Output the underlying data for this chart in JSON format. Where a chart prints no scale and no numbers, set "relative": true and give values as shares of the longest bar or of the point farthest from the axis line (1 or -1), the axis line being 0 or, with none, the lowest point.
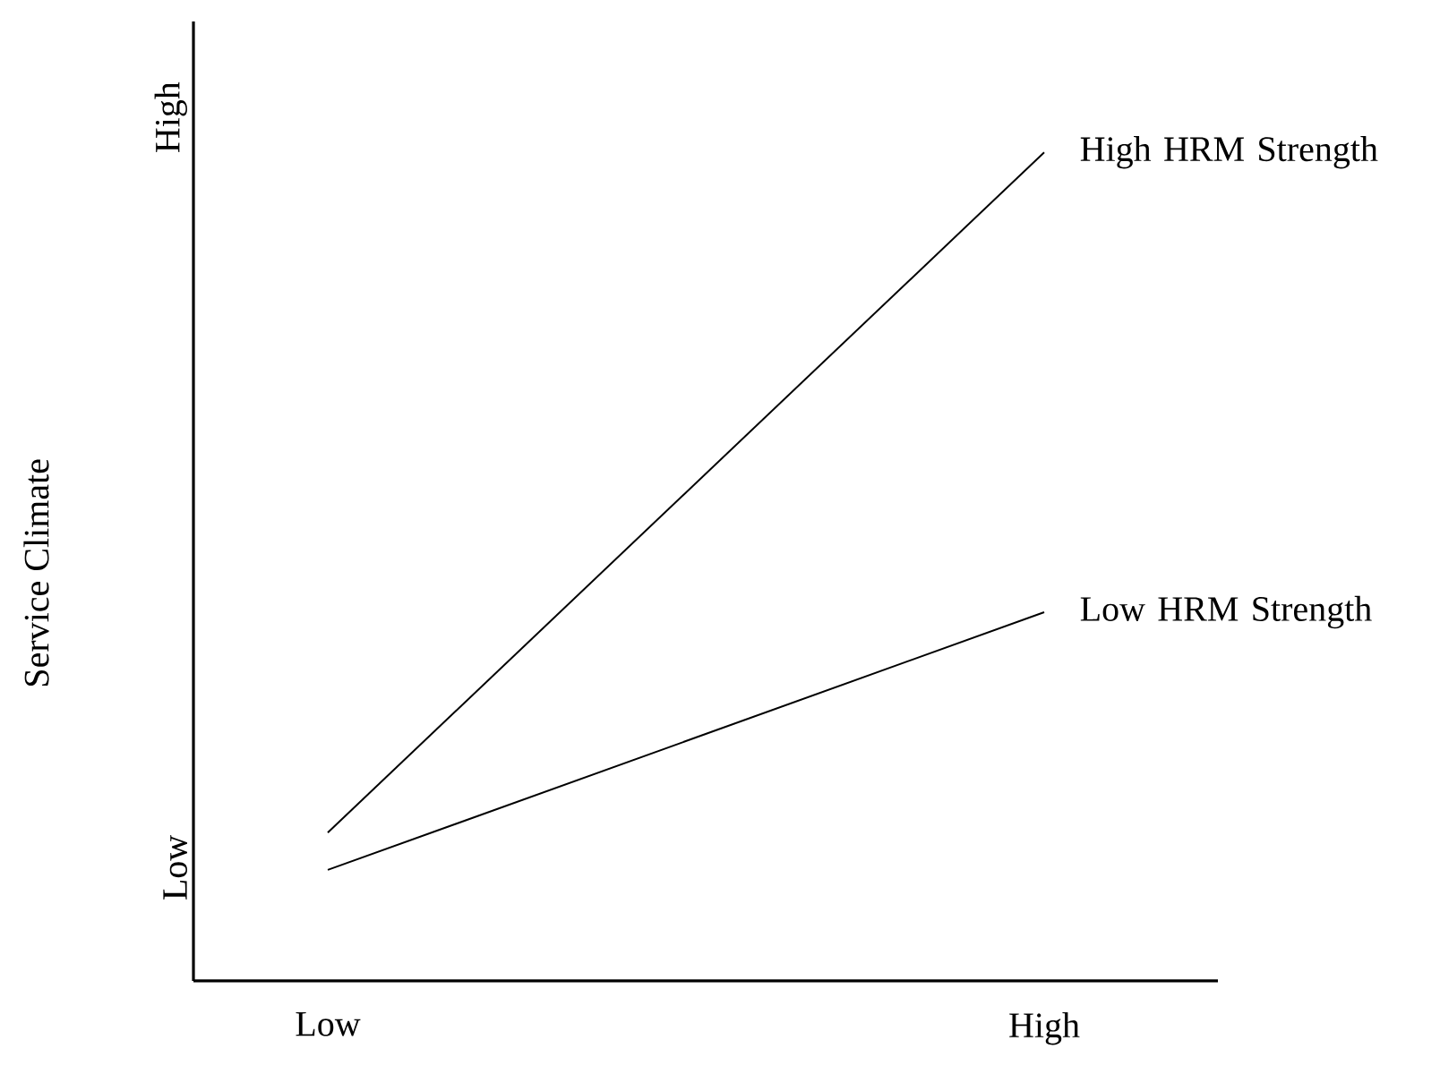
{
  "chart_data": {
    "type": "line",
    "ylabel": "Service Climate",
    "categories": [
      "Low",
      "High"
    ],
    "relative": true,
    "series": [
      {
        "name": "High HRM Strength",
        "color": "#000000",
        "values": [
          0.179,
          1
        ]
      },
      {
        "name": "Low HRM Strength",
        "color": "#000000",
        "values": [
          0.134,
          0.445
        ]
      }
    ],
    "annotations": [
      "High",
      "Low"
    ]
  }
}
